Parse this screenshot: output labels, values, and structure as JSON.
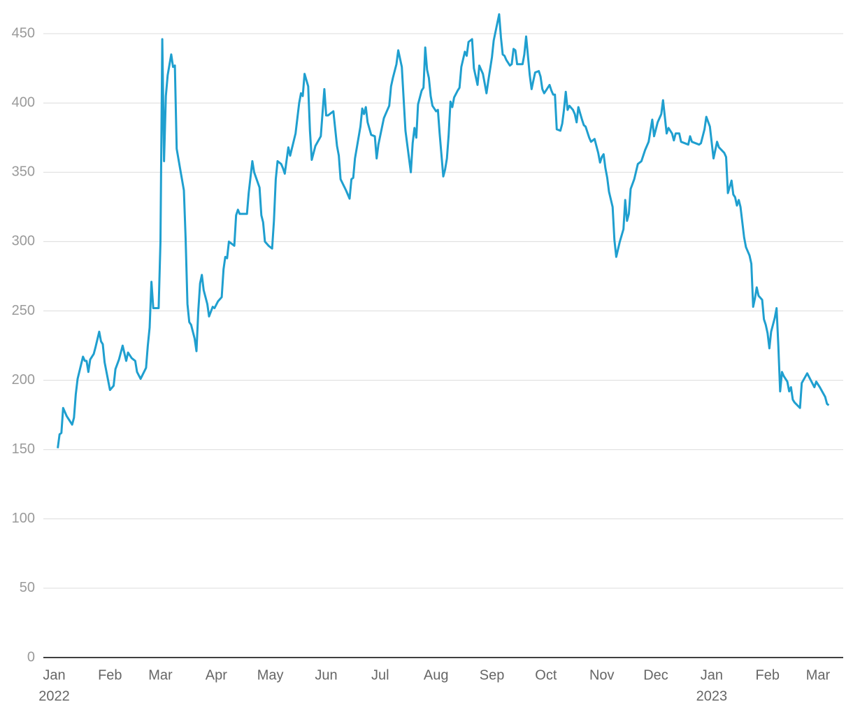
{
  "chart_data": {
    "type": "line",
    "color": "#1f9fcf",
    "grid": true,
    "xlim": [
      -6,
      438
    ],
    "ylim": [
      0,
      470
    ],
    "yticks": [
      0,
      50,
      100,
      150,
      200,
      250,
      300,
      350,
      400,
      450
    ],
    "xticks": [
      {
        "value": 0,
        "label": "Jan"
      },
      {
        "value": 31,
        "label": "Feb"
      },
      {
        "value": 59,
        "label": "Mar"
      },
      {
        "value": 90,
        "label": "Apr"
      },
      {
        "value": 120,
        "label": "May"
      },
      {
        "value": 151,
        "label": "Jun"
      },
      {
        "value": 181,
        "label": "Jul"
      },
      {
        "value": 212,
        "label": "Aug"
      },
      {
        "value": 243,
        "label": "Sep"
      },
      {
        "value": 273,
        "label": "Oct"
      },
      {
        "value": 304,
        "label": "Nov"
      },
      {
        "value": 334,
        "label": "Dec"
      },
      {
        "value": 365,
        "label": "Jan"
      },
      {
        "value": 396,
        "label": "Feb"
      },
      {
        "value": 424,
        "label": "Mar"
      }
    ],
    "year_labels": [
      {
        "value": 0,
        "label": "2022"
      },
      {
        "value": 365,
        "label": "2023"
      }
    ],
    "x": [
      2,
      3,
      4,
      5,
      7,
      10,
      11,
      12,
      13,
      16,
      17,
      18,
      19,
      20,
      22,
      23,
      25,
      26,
      27,
      28,
      31,
      33,
      34,
      36,
      38,
      40,
      41,
      43,
      45,
      46,
      48,
      51,
      52,
      53,
      54,
      55,
      58,
      59,
      60,
      61,
      62,
      63,
      65,
      66,
      67,
      68,
      70,
      72,
      73,
      74,
      75,
      76,
      78,
      79,
      80,
      81,
      82,
      83,
      85,
      86,
      88,
      89,
      91,
      93,
      94,
      95,
      96,
      97,
      98,
      100,
      101,
      102,
      103,
      107,
      108,
      110,
      111,
      114,
      115,
      116,
      117,
      119,
      121,
      122,
      123,
      124,
      126,
      127,
      128,
      130,
      131,
      134,
      136,
      137,
      138,
      139,
      141,
      142,
      143,
      145,
      148,
      150,
      151,
      152,
      155,
      157,
      158,
      159,
      162,
      164,
      165,
      166,
      167,
      170,
      171,
      172,
      173,
      174,
      176,
      178,
      179,
      180,
      183,
      184,
      186,
      187,
      188,
      190,
      191,
      193,
      194,
      195,
      198,
      199,
      200,
      201,
      202,
      204,
      205,
      206,
      207,
      208,
      209,
      210,
      212,
      213,
      214,
      216,
      217,
      218,
      219,
      220,
      221,
      222,
      224,
      225,
      226,
      228,
      229,
      230,
      232,
      233,
      235,
      236,
      238,
      239,
      240,
      241,
      243,
      244,
      247,
      248,
      249,
      250,
      251,
      253,
      254,
      255,
      256,
      257,
      260,
      261,
      262,
      264,
      265,
      266,
      267,
      269,
      270,
      271,
      272,
      273,
      275,
      276,
      277,
      278,
      279,
      281,
      282,
      283,
      284,
      285,
      286,
      288,
      289,
      290,
      291,
      293,
      294,
      295,
      297,
      298,
      300,
      302,
      303,
      304,
      305,
      306,
      307,
      308,
      310,
      311,
      312,
      314,
      316,
      317,
      318,
      319,
      320,
      322,
      324,
      326,
      327,
      328,
      330,
      332,
      333,
      335,
      337,
      338,
      340,
      341,
      343,
      344,
      345,
      347,
      348,
      350,
      352,
      353,
      354,
      356,
      358,
      359,
      361,
      362,
      364,
      366,
      368,
      369,
      372,
      373,
      374,
      376,
      377,
      378,
      379,
      380,
      381,
      383,
      384,
      386,
      387,
      388,
      389,
      390,
      391,
      393,
      394,
      395,
      396,
      397,
      398,
      400,
      401,
      402,
      403,
      404,
      405,
      407,
      408,
      409,
      410,
      411,
      414,
      415,
      418,
      420,
      422,
      423,
      425,
      428,
      429,
      430
    ],
    "values": [
      151,
      161,
      162,
      180,
      174,
      168,
      173,
      190,
      201,
      217,
      214,
      214,
      206,
      215,
      219,
      224,
      235,
      228,
      226,
      213,
      193,
      196,
      208,
      215,
      225,
      214,
      220,
      216,
      214,
      206,
      201,
      209,
      225,
      238,
      271,
      252,
      252,
      300,
      446,
      358,
      405,
      420,
      435,
      426,
      427,
      367,
      352,
      337,
      302,
      255,
      242,
      240,
      230,
      221,
      250,
      270,
      276,
      265,
      255,
      246,
      253,
      252,
      257,
      260,
      280,
      289,
      288,
      300,
      299,
      297,
      319,
      323,
      320,
      320,
      335,
      358,
      350,
      339,
      319,
      314,
      300,
      297,
      295,
      315,
      345,
      358,
      356,
      353,
      349,
      368,
      362,
      378,
      400,
      407,
      405,
      421,
      412,
      380,
      359,
      369,
      376,
      410,
      391,
      391,
      394,
      369,
      362,
      345,
      337,
      331,
      345,
      346,
      360,
      383,
      396,
      392,
      397,
      386,
      377,
      376,
      360,
      370,
      389,
      392,
      398,
      412,
      418,
      428,
      438,
      426,
      403,
      380,
      350,
      371,
      382,
      375,
      399,
      409,
      411,
      440,
      424,
      418,
      405,
      398,
      394,
      395,
      378,
      347,
      352,
      360,
      377,
      401,
      397,
      404,
      409,
      411,
      426,
      437,
      434,
      444,
      446,
      425,
      413,
      427,
      421,
      414,
      407,
      416,
      433,
      445,
      464,
      447,
      435,
      434,
      431,
      427,
      428,
      439,
      438,
      428,
      428,
      435,
      448,
      420,
      410,
      416,
      422,
      423,
      419,
      410,
      407,
      409,
      413,
      409,
      406,
      406,
      381,
      380,
      385,
      395,
      408,
      395,
      398,
      395,
      392,
      386,
      397,
      388,
      384,
      383,
      375,
      372,
      374,
      364,
      357,
      361,
      363,
      353,
      346,
      336,
      325,
      301,
      289,
      300,
      309,
      330,
      315,
      320,
      338,
      345,
      356,
      358,
      362,
      366,
      372,
      388,
      376,
      386,
      392,
      402,
      378,
      382,
      378,
      373,
      378,
      378,
      372,
      371,
      370,
      376,
      372,
      371,
      370,
      371,
      381,
      390,
      383,
      360,
      372,
      368,
      364,
      361,
      335,
      344,
      334,
      332,
      326,
      330,
      325,
      303,
      296,
      290,
      284,
      253,
      259,
      267,
      261,
      258,
      244,
      240,
      234,
      223,
      235,
      245,
      252,
      225,
      192,
      206,
      203,
      199,
      192,
      195,
      186,
      184,
      180,
      198,
      205,
      200,
      195,
      199,
      195,
      188,
      183,
      182
    ]
  }
}
